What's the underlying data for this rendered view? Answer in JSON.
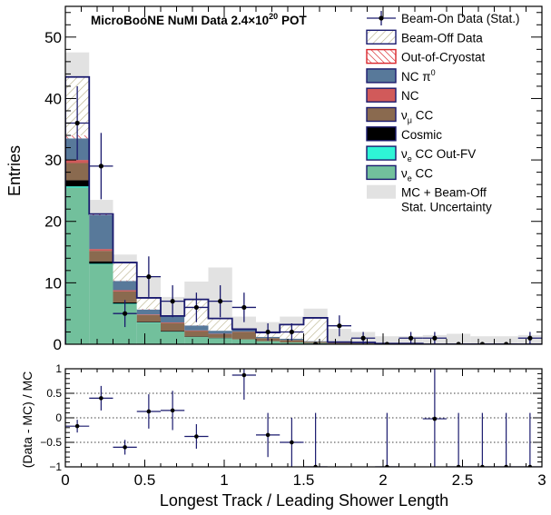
{
  "chart_data": {
    "type": "bar",
    "title": "MicroBooNE NuMI Data 2.4×10",
    "title_superscript": "20",
    "title_suffix": " POT",
    "xlabel": "Longest Track / Leading Shower Length",
    "ylabel": "Entries",
    "ratio_ylabel": "(Data - MC) / MC",
    "xlim": [
      0,
      3
    ],
    "ylim": [
      0,
      55
    ],
    "ratio_ylim": [
      -1,
      1
    ],
    "x_ticks": [
      "0",
      "0.5",
      "1",
      "1.5",
      "2",
      "2.5",
      "3"
    ],
    "y_ticks": [
      "0",
      "10",
      "20",
      "30",
      "40",
      "50"
    ],
    "ratio_y_ticks": [
      "−1",
      "−0.5",
      "0",
      "0.5",
      "1"
    ],
    "bin_edges": [
      0,
      0.15,
      0.3,
      0.45,
      0.6,
      0.75,
      0.9,
      1.05,
      1.2,
      1.35,
      1.5,
      1.65,
      1.8,
      1.95,
      2.1,
      2.25,
      2.4,
      2.55,
      2.7,
      2.85,
      3.0
    ],
    "grid": false,
    "legend_placement": "top-right",
    "legend": [
      {
        "label": "Beam-On Data (Stat.)",
        "style": "marker"
      },
      {
        "label": "Beam-Off Data",
        "style": "hatch-diag",
        "color": "#b8b08a"
      },
      {
        "label": "Out-of-Cryostat",
        "style": "hatch-red",
        "color": "#d9242a"
      },
      {
        "label": "NC π",
        "sup": "0",
        "style": "fill",
        "color": "#58799a"
      },
      {
        "label": "NC",
        "style": "fill",
        "color": "#d15a5a"
      },
      {
        "label": "ν",
        "sub": "μ",
        "suffix": " CC",
        "style": "fill",
        "color": "#8a6a4f"
      },
      {
        "label": "Cosmic",
        "style": "fill",
        "color": "#000000"
      },
      {
        "label": "ν",
        "sub": "e",
        "suffix": " CC Out-FV",
        "style": "fill",
        "color": "#2ef4d6"
      },
      {
        "label": "ν",
        "sub": "e",
        "suffix": " CC",
        "style": "fill",
        "color": "#72c09c"
      },
      {
        "label": "MC + Beam-Off",
        "label2": "Stat. Uncertainty",
        "style": "fill",
        "color": "#e2e2e2"
      }
    ],
    "series": [
      {
        "name": "ν_e CC",
        "color": "#72c09c",
        "values": [
          25.5,
          13,
          6.5,
          3.5,
          2,
          1.2,
          1,
          0.8,
          0.5,
          0.3,
          0.2,
          0.1,
          0.1,
          0.05,
          0.05,
          0,
          0,
          0,
          0,
          0
        ]
      },
      {
        "name": "ν_e CC Out-FV",
        "color": "#2ef4d6",
        "values": [
          0.2,
          0.1,
          0.1,
          0.05,
          0.05,
          0,
          0,
          0,
          0,
          0,
          0,
          0,
          0,
          0,
          0,
          0,
          0,
          0,
          0,
          0
        ]
      },
      {
        "name": "Cosmic",
        "color": "#000000",
        "values": [
          1,
          0.4,
          0.2,
          0.1,
          0.1,
          0.05,
          0.05,
          0,
          0,
          0,
          0,
          0,
          0,
          0,
          0,
          0,
          0,
          0,
          0,
          0
        ]
      },
      {
        "name": "ν_μ CC",
        "color": "#8a6a4f",
        "values": [
          2.8,
          1.7,
          1.8,
          1.1,
          1.3,
          0.9,
          0.6,
          1.2,
          0.5,
          0.4,
          0.2,
          0.15,
          0.1,
          0.05,
          0.05,
          0,
          0,
          0,
          0,
          0
        ]
      },
      {
        "name": "NC",
        "color": "#d15a5a",
        "values": [
          0.5,
          0.3,
          0.2,
          0.1,
          0.1,
          0.1,
          0.05,
          0.05,
          0,
          0,
          0,
          0,
          0,
          0,
          0,
          0,
          0,
          0,
          0,
          0
        ]
      },
      {
        "name": "NC π0",
        "color": "#58799a",
        "values": [
          3.5,
          5.5,
          1.5,
          0.8,
          1,
          0.8,
          0.5,
          0.4,
          0.2,
          0.2,
          0.1,
          0.1,
          0.1,
          0,
          0,
          0,
          0,
          0,
          0,
          0
        ]
      },
      {
        "name": "Out-of-Cryostat",
        "color": "#d9242a",
        "values": [
          0.5,
          0.2,
          0.1,
          0.1,
          0.05,
          0.05,
          0,
          0,
          0,
          0,
          0,
          0,
          0,
          0,
          0,
          0,
          0,
          0,
          0,
          0
        ]
      },
      {
        "name": "Beam-Off Data",
        "color": "#b8b08a",
        "values": [
          9.5,
          0,
          2.9,
          1.8,
          0,
          4.2,
          2,
          0,
          0.7,
          2.3,
          3.8,
          0,
          0,
          0,
          0,
          0,
          0,
          0,
          0,
          0
        ]
      }
    ],
    "uncertainty_band": [
      47.5,
      23.5,
      14.6,
      11,
      7.7,
      10.2,
      12.5,
      4.5,
      3.6,
      4.5,
      5.8,
      2.5,
      2,
      1.3,
      1.3,
      1.5,
      1.7,
      1.3,
      1.3,
      1.5
    ],
    "data_points": [
      {
        "x": 0.075,
        "y": 36,
        "yerr": 6
      },
      {
        "x": 0.225,
        "y": 29,
        "yerr": 5.4
      },
      {
        "x": 0.375,
        "y": 5,
        "yerr": 2.2
      },
      {
        "x": 0.525,
        "y": 11,
        "yerr": 3.3
      },
      {
        "x": 0.675,
        "y": 7,
        "yerr": 2.6
      },
      {
        "x": 0.825,
        "y": 6,
        "yerr": 2.4
      },
      {
        "x": 0.975,
        "y": 7,
        "yerr": 2.6
      },
      {
        "x": 1.125,
        "y": 6,
        "yerr": 2.4
      },
      {
        "x": 1.275,
        "y": 2,
        "yerr": 1.4
      },
      {
        "x": 1.425,
        "y": 2,
        "yerr": 1.4
      },
      {
        "x": 1.575,
        "y": 0,
        "yerr": 0
      },
      {
        "x": 1.725,
        "y": 3,
        "yerr": 1.7
      },
      {
        "x": 1.875,
        "y": 1,
        "yerr": 1
      },
      {
        "x": 2.025,
        "y": 0,
        "yerr": 0
      },
      {
        "x": 2.175,
        "y": 1,
        "yerr": 1
      },
      {
        "x": 2.325,
        "y": 1,
        "yerr": 1
      },
      {
        "x": 2.475,
        "y": 0,
        "yerr": 0
      },
      {
        "x": 2.625,
        "y": 0,
        "yerr": 0
      },
      {
        "x": 2.775,
        "y": 0,
        "yerr": 0
      },
      {
        "x": 2.925,
        "y": 1,
        "yerr": 1
      }
    ],
    "ratio_points": [
      {
        "x": 0.075,
        "y": -0.17,
        "yerr": 0.13
      },
      {
        "x": 0.225,
        "y": 0.4,
        "yerr": 0.25
      },
      {
        "x": 0.375,
        "y": -0.6,
        "yerr": 0.15
      },
      {
        "x": 0.525,
        "y": 0.13,
        "yerr": 0.35
      },
      {
        "x": 0.675,
        "y": 0.15,
        "yerr": 0.4
      },
      {
        "x": 0.825,
        "y": -0.38,
        "yerr": 0.25
      },
      {
        "x": 1.125,
        "y": 0.87,
        "yerr": 0.5
      },
      {
        "x": 1.275,
        "y": -0.35,
        "yerr": 0.45
      },
      {
        "x": 1.425,
        "y": -0.5,
        "yerr": 0.5
      },
      {
        "x": 1.575,
        "y": -1,
        "yerr": 1.1
      },
      {
        "x": 2.025,
        "y": -1,
        "yerr": 1.1
      },
      {
        "x": 2.325,
        "y": -0.02,
        "yerr": 1.05
      },
      {
        "x": 2.475,
        "y": -1,
        "yerr": 1.1
      },
      {
        "x": 2.625,
        "y": -1,
        "yerr": 1.1
      },
      {
        "x": 2.775,
        "y": -1,
        "yerr": 1.1
      },
      {
        "x": 2.925,
        "y": -1,
        "yerr": 1.1
      }
    ]
  }
}
